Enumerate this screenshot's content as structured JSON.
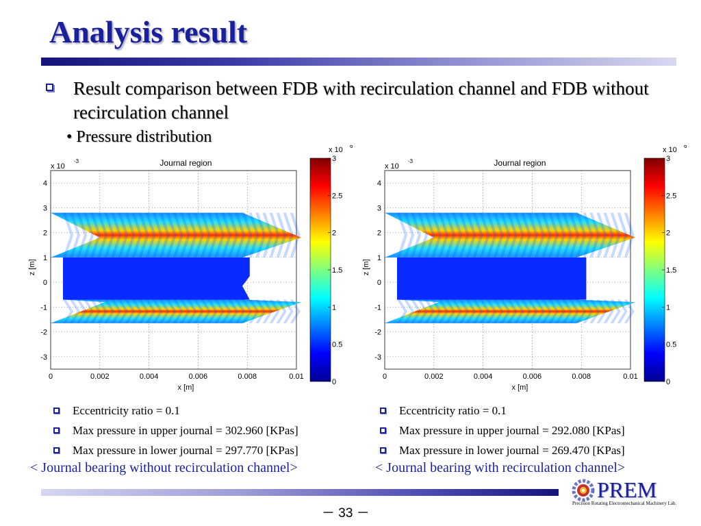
{
  "slide": {
    "title": "Analysis result",
    "main_bullet": "Result comparison between FDB with recirculation channel and FDB without recirculation channel",
    "sub_bullet": "• Pressure distribution",
    "page_number": "－ 33 －"
  },
  "plots": [
    {
      "title": "Journal region",
      "exp_base": "x 10",
      "exp_power": "-3",
      "colorbar_exp_base": "x 10",
      "colorbar_exp_power": "6",
      "xlabel": "x [m]",
      "ylabel": "z [m]"
    },
    {
      "title": "Journal region",
      "exp_base": "x 10",
      "exp_power": "-3",
      "colorbar_exp_base": "x 10",
      "colorbar_exp_power": "6",
      "xlabel": "x [m]",
      "ylabel": "z [m]"
    }
  ],
  "left_results": {
    "items": [
      "Eccentricity ratio = 0.1",
      "Max pressure in upper journal = 302.960 [KPas]",
      "Max pressure in lower journal = 297.770 [KPas]"
    ],
    "caption": "< Journal bearing without recirculation channel>"
  },
  "right_results": {
    "items": [
      "Eccentricity ratio = 0.1",
      "Max pressure in upper journal = 292.080 [KPas]",
      "Max pressure in lower journal = 269.470 [KPas]"
    ],
    "caption": "< Journal bearing with recirculation channel>"
  },
  "logo": {
    "name": "PREM",
    "subtitle": "Precision Rotating Electromechanical Machinery Lab."
  },
  "chart_data": [
    {
      "type": "heatmap",
      "title": "Journal region",
      "xlabel": "x [m]",
      "ylabel": "z [m]",
      "x_ticks": [
        "0",
        "0.002",
        "0.004",
        "0.006",
        "0.008",
        "0.01"
      ],
      "y_ticks": [
        "4",
        "3",
        "2",
        "1",
        "0",
        "-1",
        "-2",
        "-3"
      ],
      "colorbar_ticks": [
        "3",
        "2.5",
        "2",
        "1.5",
        "1",
        "0.5",
        "0"
      ],
      "xlim": [
        0,
        0.01
      ],
      "ylim": [
        -3.5,
        4.5
      ],
      "clim": [
        0,
        3
      ],
      "grid": true
    },
    {
      "type": "heatmap",
      "title": "Journal region",
      "xlabel": "x [m]",
      "ylabel": "z [m]",
      "x_ticks": [
        "0",
        "0.002",
        "0.004",
        "0.006",
        "0.008",
        "0.01"
      ],
      "y_ticks": [
        "4",
        "3",
        "2",
        "1",
        "0",
        "-1",
        "-2",
        "-3"
      ],
      "colorbar_ticks": [
        "3",
        "2.5",
        "2",
        "1.5",
        "1",
        "0.5",
        "0"
      ],
      "xlim": [
        0,
        0.01
      ],
      "ylim": [
        -3.5,
        4.5
      ],
      "clim": [
        0,
        3
      ],
      "grid": true
    }
  ]
}
